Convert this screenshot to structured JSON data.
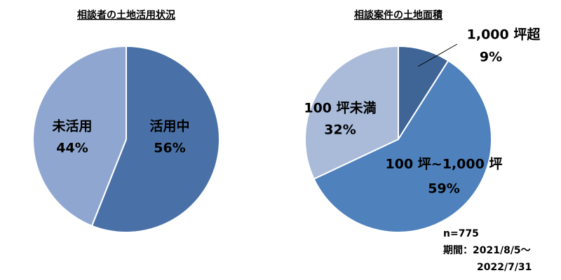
{
  "chart_data": [
    {
      "type": "pie",
      "title": "相談者の土地活用状況",
      "categories": [
        "活用中",
        "未活用"
      ],
      "values": [
        56,
        44
      ],
      "value_labels": [
        "56%",
        "44%"
      ],
      "colors": [
        "#4a71a7",
        "#8fa7d0"
      ]
    },
    {
      "type": "pie",
      "title": "相談案件の土地面積",
      "categories": [
        "1,000 坪超",
        "100 坪~1,000 坪",
        "100 坪未満"
      ],
      "values": [
        9,
        59,
        32
      ],
      "value_labels": [
        "9%",
        "59%",
        "32%"
      ],
      "colors": [
        "#3f6597",
        "#4f81bd",
        "#a9bbd9"
      ],
      "annotations": [
        "n=775",
        "期間：2021/8/5～",
        "2022/7/31"
      ]
    }
  ]
}
